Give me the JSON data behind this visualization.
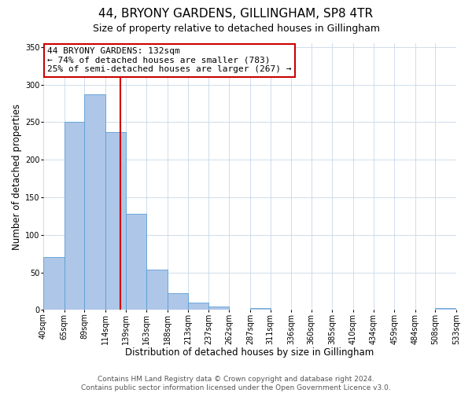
{
  "title": "44, BRYONY GARDENS, GILLINGHAM, SP8 4TR",
  "subtitle": "Size of property relative to detached houses in Gillingham",
  "xlabel": "Distribution of detached houses by size in Gillingham",
  "ylabel": "Number of detached properties",
  "bin_edges": [
    40,
    65,
    89,
    114,
    139,
    163,
    188,
    213,
    237,
    262,
    287,
    311,
    336,
    360,
    385,
    410,
    434,
    459,
    484,
    508,
    533
  ],
  "bar_heights": [
    70,
    250,
    287,
    237,
    128,
    54,
    22,
    10,
    4,
    0,
    2,
    0,
    0,
    0,
    0,
    0,
    0,
    0,
    0,
    2
  ],
  "bar_color": "#aec6e8",
  "bar_edge_color": "#5a9fd4",
  "property_line_x": 132,
  "property_line_color": "#cc0000",
  "annotation_line1": "44 BRYONY GARDENS: 132sqm",
  "annotation_line2": "← 74% of detached houses are smaller (783)",
  "annotation_line3": "25% of semi-detached houses are larger (267) →",
  "annotation_box_color": "#ffffff",
  "annotation_box_edge_color": "#cc0000",
  "ylim": [
    0,
    355
  ],
  "xlim": [
    40,
    533
  ],
  "yticks": [
    0,
    50,
    100,
    150,
    200,
    250,
    300,
    350
  ],
  "xtick_labels": [
    "40sqm",
    "65sqm",
    "89sqm",
    "114sqm",
    "139sqm",
    "163sqm",
    "188sqm",
    "213sqm",
    "237sqm",
    "262sqm",
    "287sqm",
    "311sqm",
    "336sqm",
    "360sqm",
    "385sqm",
    "410sqm",
    "434sqm",
    "459sqm",
    "484sqm",
    "508sqm",
    "533sqm"
  ],
  "footer_text": "Contains HM Land Registry data © Crown copyright and database right 2024.\nContains public sector information licensed under the Open Government Licence v3.0.",
  "background_color": "#ffffff",
  "grid_color": "#c8d8e8",
  "title_fontsize": 11,
  "subtitle_fontsize": 9,
  "axis_label_fontsize": 8.5,
  "tick_fontsize": 7,
  "annotation_fontsize": 8,
  "footer_fontsize": 6.5
}
